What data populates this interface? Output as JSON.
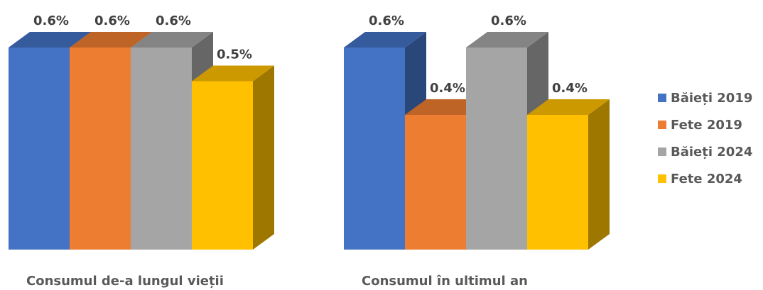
{
  "chart_data": {
    "type": "bar",
    "categories": [
      "Consumul de-a lungul vieții",
      "Consumul în ultimul an"
    ],
    "series": [
      {
        "name": "Băieți 2019",
        "values": [
          0.6,
          0.6
        ],
        "labels": [
          "0.6%",
          "0.6%"
        ],
        "color": "#4472C4"
      },
      {
        "name": "Fete 2019",
        "values": [
          0.6,
          0.4
        ],
        "labels": [
          "0.6%",
          "0.4%"
        ],
        "color": "#ED7D31"
      },
      {
        "name": "Băieți 2024",
        "values": [
          0.6,
          0.6
        ],
        "labels": [
          "0.6%",
          "0.6%"
        ],
        "color": "#A5A5A5"
      },
      {
        "name": "Fete 2024",
        "values": [
          0.5,
          0.4
        ],
        "labels": [
          "0.5%",
          "0.4%"
        ],
        "color": "#FFC000"
      }
    ],
    "unit": "%",
    "grid": false,
    "legend_position": "right",
    "style": "3d-clustered-column"
  }
}
